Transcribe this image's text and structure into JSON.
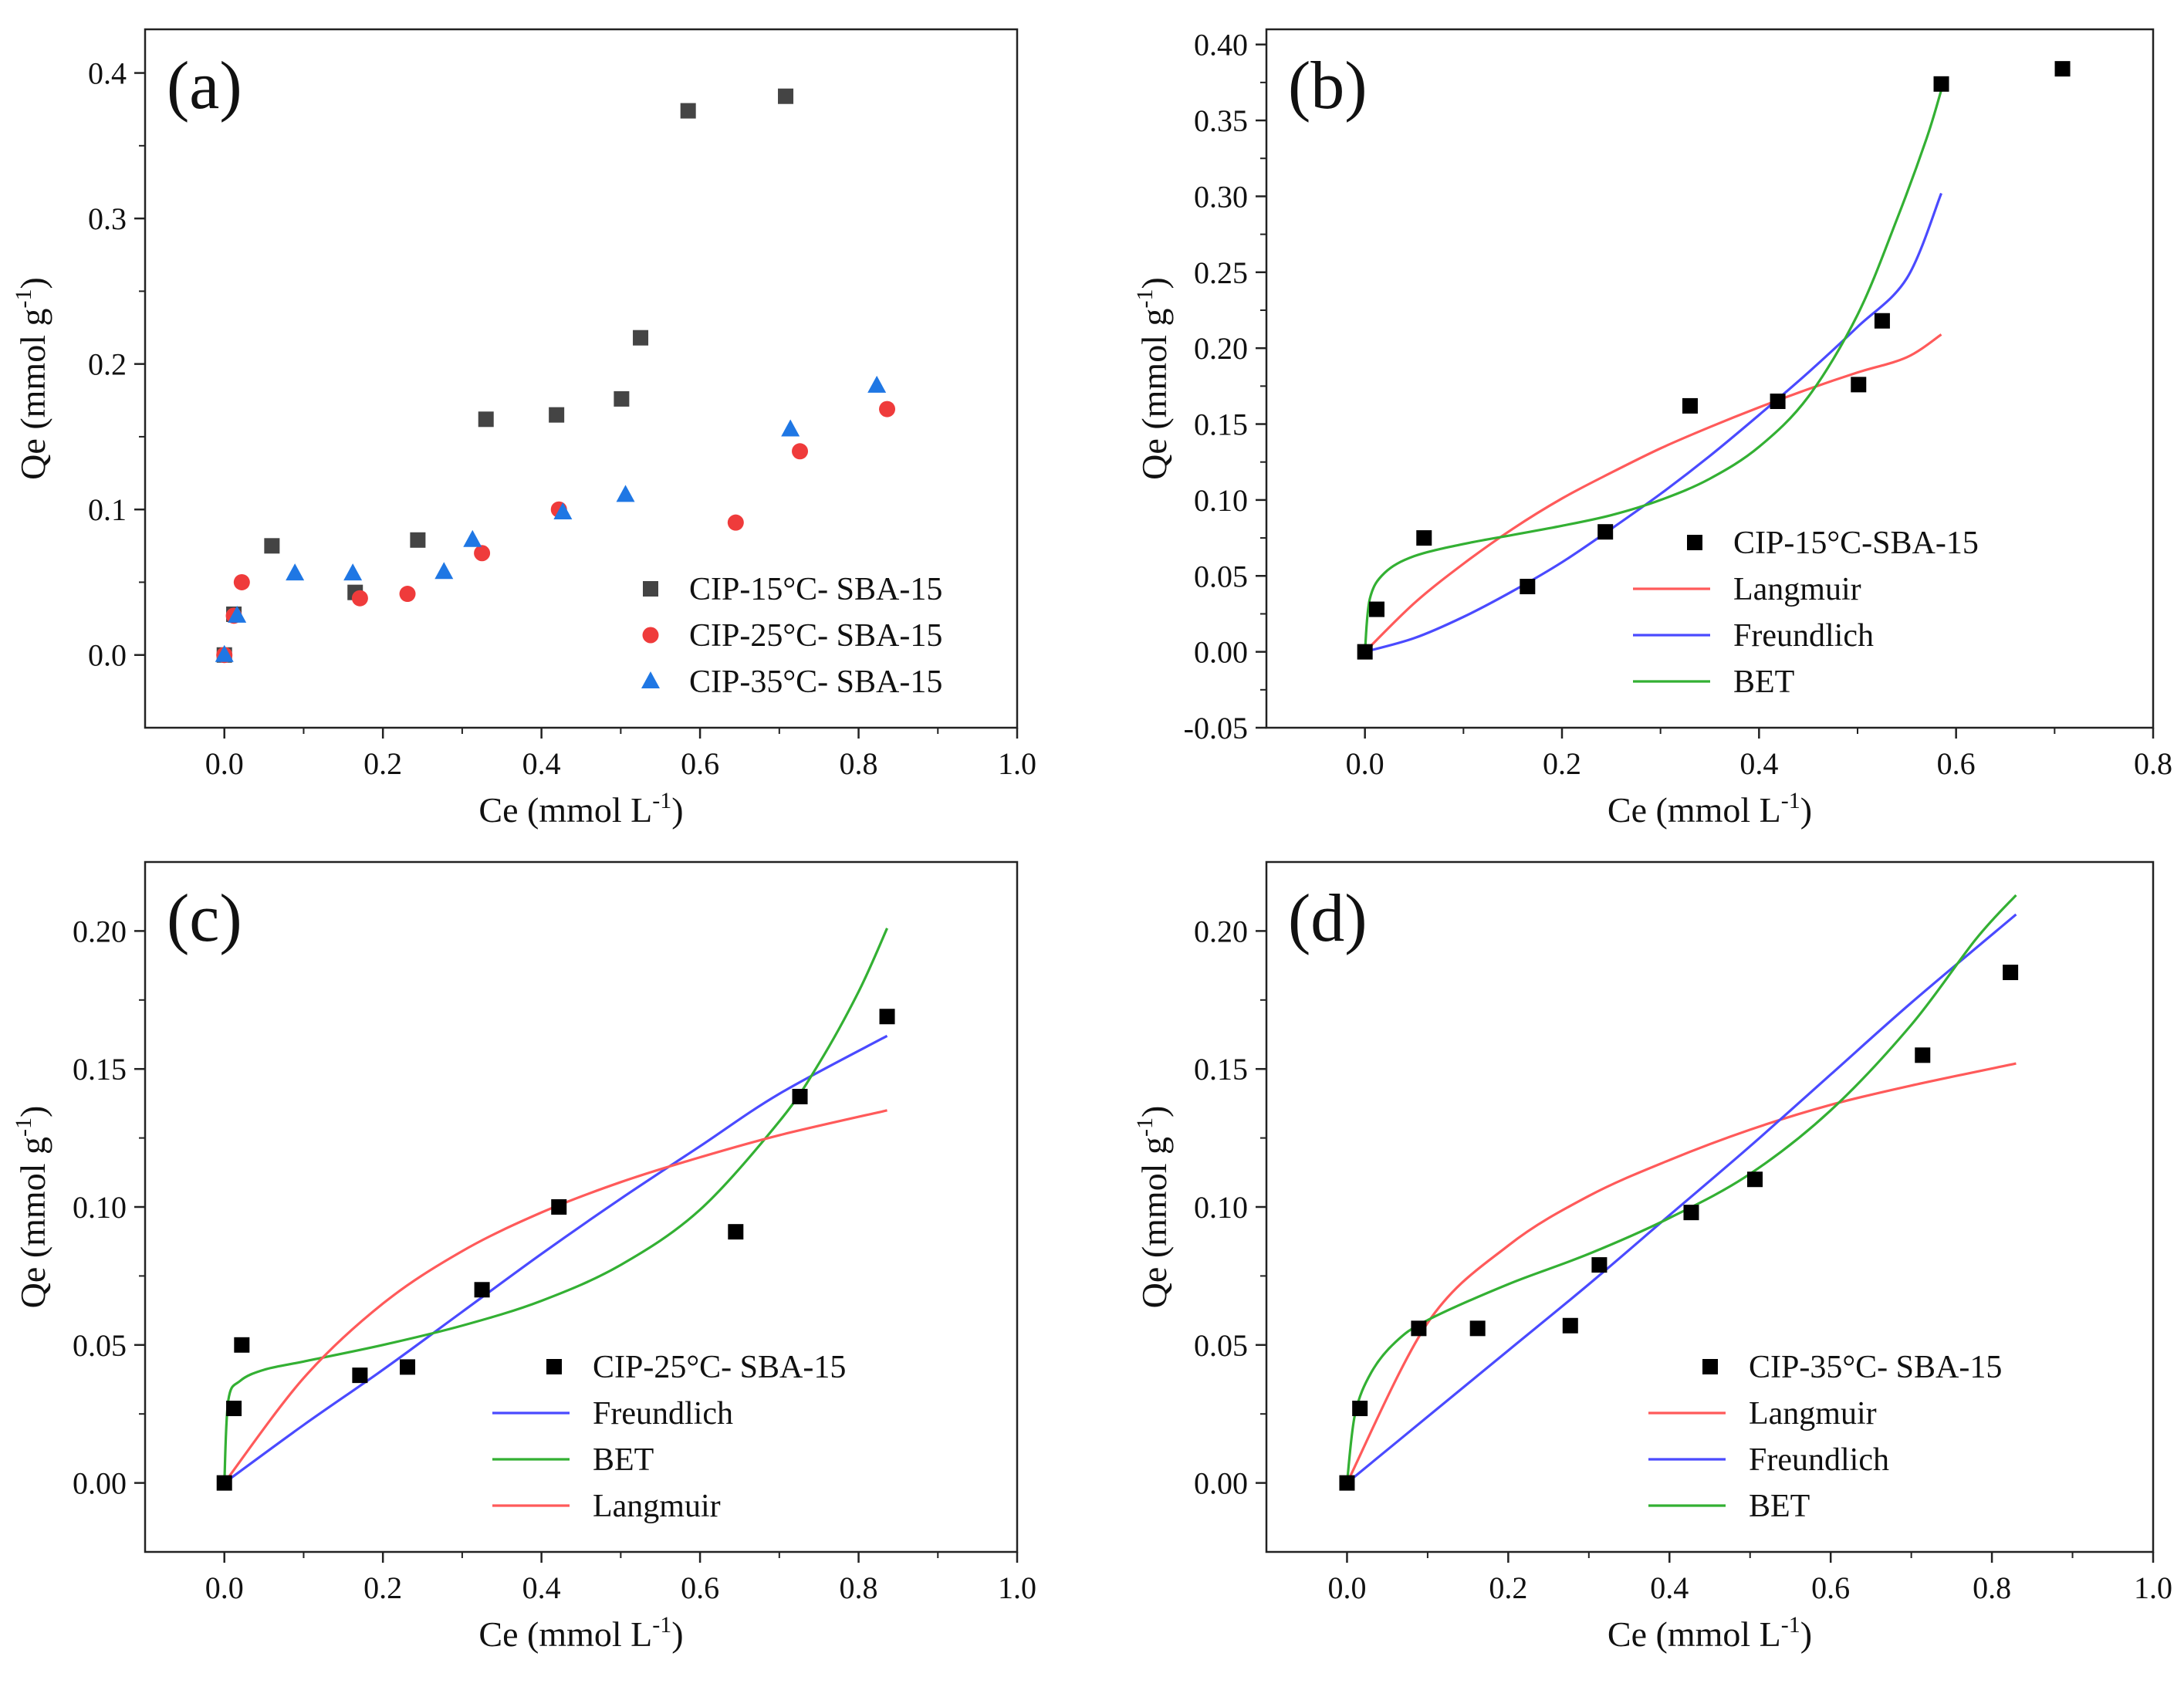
{
  "chart_data": [
    {
      "id": "a",
      "type": "scatter",
      "panel_label": "(a)",
      "xlabel": "Ce (mmol L",
      "xlabel_sup": "-1",
      "xlabel_tail": ")",
      "ylabel": "Qe (mmol g",
      "ylabel_sup": "-1",
      "ylabel_tail": ")",
      "xlim": [
        -0.1,
        1.0
      ],
      "ylim": [
        -0.05,
        0.43
      ],
      "xticks": [
        0.0,
        0.2,
        0.4,
        0.6,
        0.8,
        1.0
      ],
      "xtick_labels": [
        "0.0",
        "0.2",
        "0.4",
        "0.6",
        "0.8",
        "1.0"
      ],
      "yticks": [
        0.0,
        0.1,
        0.2,
        0.3,
        0.4
      ],
      "ytick_labels": [
        "0.0",
        "0.1",
        "0.2",
        "0.3",
        "0.4"
      ],
      "legend_position": "bottom-right",
      "series": [
        {
          "name": "CIP-15°C- SBA-15",
          "marker": "square",
          "color": "#444444",
          "x": [
            0.0,
            0.012,
            0.06,
            0.165,
            0.244,
            0.33,
            0.419,
            0.501,
            0.525,
            0.585,
            0.708
          ],
          "y": [
            0.0,
            0.028,
            0.075,
            0.043,
            0.079,
            0.162,
            0.165,
            0.176,
            0.218,
            0.374,
            0.384
          ]
        },
        {
          "name": "CIP-25°C- SBA-15",
          "marker": "circle",
          "color": "#ef3b3b",
          "x": [
            0.0,
            0.012,
            0.022,
            0.171,
            0.231,
            0.325,
            0.422,
            0.645,
            0.726,
            0.836
          ],
          "y": [
            0.0,
            0.027,
            0.05,
            0.039,
            0.042,
            0.07,
            0.1,
            0.091,
            0.14,
            0.169
          ]
        },
        {
          "name": "CIP-35°C- SBA-15",
          "marker": "triangle",
          "color": "#1f77e4",
          "x": [
            0.0,
            0.016,
            0.089,
            0.162,
            0.277,
            0.313,
            0.427,
            0.506,
            0.714,
            0.823
          ],
          "y": [
            0.0,
            0.027,
            0.056,
            0.056,
            0.057,
            0.079,
            0.098,
            0.11,
            0.155,
            0.185
          ]
        }
      ]
    },
    {
      "id": "b",
      "type": "scatter",
      "panel_label": "(b)",
      "xlabel": "Ce (mmol L",
      "xlabel_sup": "-1",
      "xlabel_tail": ")",
      "ylabel": "Qe (mmol g",
      "ylabel_sup": "-1",
      "ylabel_tail": ")",
      "xlim": [
        -0.1,
        0.8
      ],
      "ylim": [
        -0.05,
        0.41
      ],
      "xticks": [
        0.0,
        0.2,
        0.4,
        0.6,
        0.8
      ],
      "xtick_labels": [
        "0.0",
        "0.2",
        "0.4",
        "0.6",
        "0.8"
      ],
      "yticks": [
        -0.05,
        0.0,
        0.05,
        0.1,
        0.15,
        0.2,
        0.25,
        0.3,
        0.35,
        0.4
      ],
      "ytick_labels": [
        "-0.05",
        "0.00",
        "0.05",
        "0.10",
        "0.15",
        "0.20",
        "0.25",
        "0.30",
        "0.35",
        "0.40"
      ],
      "legend_position": "bottom-right",
      "series": [
        {
          "name": "CIP-15°C-SBA-15",
          "marker": "square",
          "color": "#000000",
          "x": [
            0.0,
            0.012,
            0.06,
            0.165,
            0.244,
            0.33,
            0.419,
            0.501,
            0.525,
            0.585,
            0.708
          ],
          "y": [
            0.0,
            0.028,
            0.075,
            0.043,
            0.079,
            0.162,
            0.165,
            0.176,
            0.218,
            0.374,
            0.384
          ]
        }
      ],
      "fits": [
        {
          "name": "Langmuir",
          "color": "#ff5a5a",
          "x": [
            0.0,
            0.05,
            0.1,
            0.15,
            0.2,
            0.25,
            0.3,
            0.35,
            0.4,
            0.45,
            0.5,
            0.55,
            0.585
          ],
          "y": [
            0.0,
            0.032,
            0.058,
            0.081,
            0.101,
            0.118,
            0.134,
            0.148,
            0.161,
            0.173,
            0.184,
            0.194,
            0.209
          ]
        },
        {
          "name": "Freundlich",
          "color": "#4a4aff",
          "x": [
            0.0,
            0.05,
            0.1,
            0.15,
            0.2,
            0.25,
            0.3,
            0.35,
            0.4,
            0.45,
            0.5,
            0.55,
            0.585
          ],
          "y": [
            0.0,
            0.009,
            0.023,
            0.04,
            0.059,
            0.081,
            0.104,
            0.129,
            0.156,
            0.184,
            0.214,
            0.246,
            0.302
          ]
        },
        {
          "name": "BET",
          "color": "#33b033",
          "x": [
            0.0,
            0.005,
            0.02,
            0.05,
            0.1,
            0.15,
            0.2,
            0.25,
            0.3,
            0.35,
            0.4,
            0.45,
            0.5,
            0.54,
            0.57,
            0.585
          ],
          "y": [
            0.0,
            0.035,
            0.052,
            0.063,
            0.071,
            0.077,
            0.083,
            0.09,
            0.1,
            0.114,
            0.135,
            0.168,
            0.222,
            0.285,
            0.338,
            0.37
          ]
        }
      ]
    },
    {
      "id": "c",
      "type": "scatter",
      "panel_label": "(c)",
      "xlabel": "Ce (mmol L",
      "xlabel_sup": "-1",
      "xlabel_tail": ")",
      "ylabel": "Qe (mmol g",
      "ylabel_sup": "-1",
      "ylabel_tail": ")",
      "xlim": [
        -0.1,
        1.0
      ],
      "ylim": [
        -0.025,
        0.225
      ],
      "xticks": [
        0.0,
        0.2,
        0.4,
        0.6,
        0.8,
        1.0
      ],
      "xtick_labels": [
        "0.0",
        "0.2",
        "0.4",
        "0.6",
        "0.8",
        "1.0"
      ],
      "yticks": [
        0.0,
        0.05,
        0.1,
        0.15,
        0.2
      ],
      "ytick_labels": [
        "0.00",
        "0.05",
        "0.10",
        "0.15",
        "0.20"
      ],
      "legend_position": "bottom-right",
      "series": [
        {
          "name": "CIP-25°C- SBA-15",
          "marker": "square",
          "color": "#000000",
          "x": [
            0.0,
            0.012,
            0.022,
            0.171,
            0.231,
            0.325,
            0.422,
            0.645,
            0.726,
            0.836
          ],
          "y": [
            0.0,
            0.027,
            0.05,
            0.039,
            0.042,
            0.07,
            0.1,
            0.091,
            0.14,
            0.169
          ]
        }
      ],
      "fits": [
        {
          "name": "Freundlich",
          "color": "#4a4aff",
          "x": [
            0.0,
            0.1,
            0.2,
            0.3,
            0.4,
            0.5,
            0.6,
            0.7,
            0.836
          ],
          "y": [
            0.0,
            0.021,
            0.041,
            0.062,
            0.083,
            0.103,
            0.122,
            0.141,
            0.162
          ]
        },
        {
          "name": "BET",
          "color": "#33b033",
          "x": [
            0.0,
            0.005,
            0.02,
            0.05,
            0.1,
            0.2,
            0.3,
            0.4,
            0.5,
            0.6,
            0.7,
            0.75,
            0.8,
            0.836
          ],
          "y": [
            0.0,
            0.03,
            0.037,
            0.041,
            0.044,
            0.05,
            0.057,
            0.066,
            0.079,
            0.099,
            0.131,
            0.152,
            0.178,
            0.201
          ]
        },
        {
          "name": "Langmuir",
          "color": "#ff5a5a",
          "x": [
            0.0,
            0.1,
            0.2,
            0.3,
            0.4,
            0.5,
            0.6,
            0.7,
            0.836
          ],
          "y": [
            0.0,
            0.038,
            0.065,
            0.084,
            0.098,
            0.109,
            0.118,
            0.126,
            0.135
          ]
        }
      ]
    },
    {
      "id": "d",
      "type": "scatter",
      "panel_label": "(d)",
      "xlabel": "Ce (mmol L",
      "xlabel_sup": "-1",
      "xlabel_tail": ")",
      "ylabel": "Qe (mmol g",
      "ylabel_sup": "-1",
      "ylabel_tail": ")",
      "xlim": [
        -0.1,
        1.0
      ],
      "ylim": [
        -0.025,
        0.225
      ],
      "xticks": [
        0.0,
        0.2,
        0.4,
        0.6,
        0.8,
        1.0
      ],
      "xtick_labels": [
        "0.0",
        "0.2",
        "0.4",
        "0.6",
        "0.8",
        "1.0"
      ],
      "yticks": [
        0.0,
        0.05,
        0.1,
        0.15,
        0.2
      ],
      "ytick_labels": [
        "0.00",
        "0.05",
        "0.10",
        "0.15",
        "0.20"
      ],
      "legend_position": "bottom-right",
      "series": [
        {
          "name": "CIP-35°C- SBA-15",
          "marker": "square",
          "color": "#000000",
          "x": [
            0.0,
            0.016,
            0.089,
            0.162,
            0.277,
            0.313,
            0.427,
            0.506,
            0.714,
            0.823
          ],
          "y": [
            0.0,
            0.027,
            0.056,
            0.056,
            0.057,
            0.079,
            0.098,
            0.11,
            0.155,
            0.185
          ]
        }
      ],
      "fits": [
        {
          "name": "Langmuir",
          "color": "#ff5a5a",
          "x": [
            0.0,
            0.1,
            0.2,
            0.3,
            0.4,
            0.5,
            0.6,
            0.7,
            0.83
          ],
          "y": [
            0.0,
            0.058,
            0.086,
            0.104,
            0.117,
            0.128,
            0.137,
            0.144,
            0.152
          ]
        },
        {
          "name": "Freundlich",
          "color": "#4a4aff",
          "x": [
            0.0,
            0.1,
            0.2,
            0.3,
            0.4,
            0.5,
            0.6,
            0.7,
            0.83
          ],
          "y": [
            0.0,
            0.024,
            0.048,
            0.072,
            0.097,
            0.122,
            0.148,
            0.174,
            0.206
          ]
        },
        {
          "name": "BET",
          "color": "#33b033",
          "x": [
            0.0,
            0.01,
            0.03,
            0.06,
            0.1,
            0.2,
            0.3,
            0.4,
            0.5,
            0.6,
            0.7,
            0.78,
            0.83
          ],
          "y": [
            0.0,
            0.025,
            0.04,
            0.051,
            0.059,
            0.072,
            0.083,
            0.096,
            0.112,
            0.135,
            0.166,
            0.197,
            0.213
          ]
        }
      ]
    }
  ]
}
